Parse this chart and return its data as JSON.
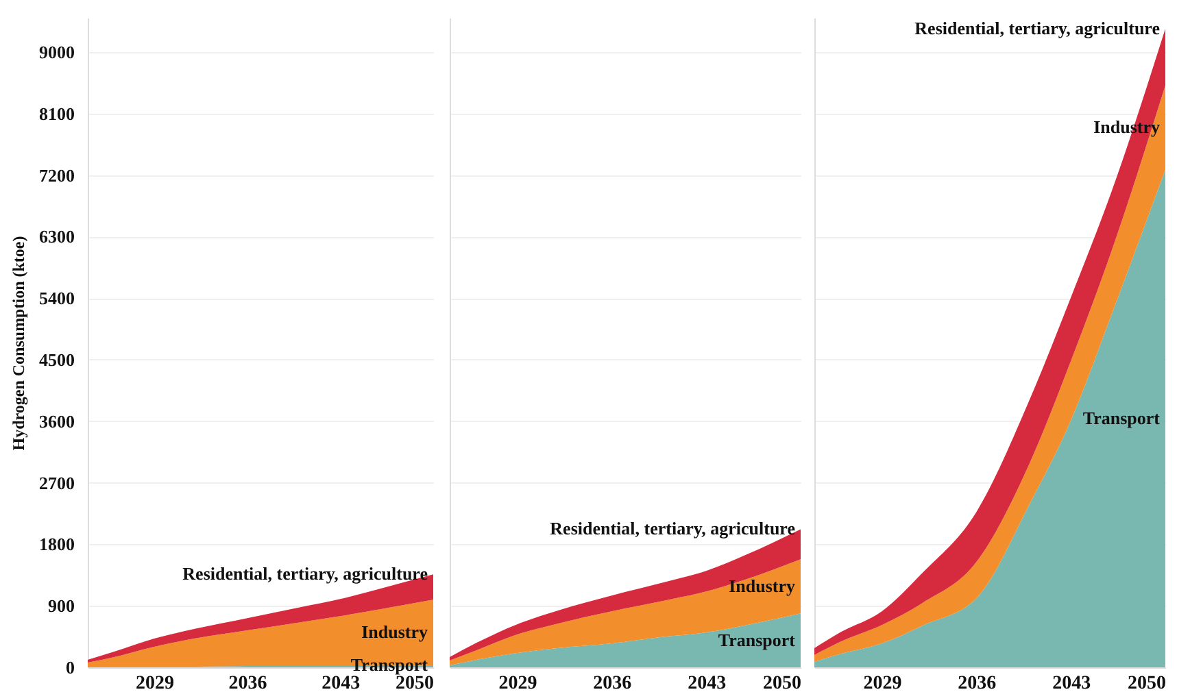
{
  "chart_data": [
    {
      "type": "area",
      "stacked": true,
      "ylabel": "Hydrogen Consumption (ktoe)",
      "x": [
        2024,
        2026,
        2029,
        2032,
        2036,
        2040,
        2043,
        2046,
        2050
      ],
      "xlim": [
        2024,
        2050
      ],
      "xticks": [
        2029,
        2036,
        2043,
        2050
      ],
      "ylim": [
        0,
        9500
      ],
      "yticks": [
        0,
        900,
        1800,
        2700,
        3600,
        4500,
        5400,
        6300,
        7200,
        8100,
        9000
      ],
      "grid": "y",
      "series": [
        {
          "name": "Transport",
          "color": "#79b8b1",
          "values": [
            10,
            10,
            10,
            10,
            20,
            20,
            20,
            20,
            30
          ]
        },
        {
          "name": "Industry",
          "color": "#f28e2b",
          "values": [
            60,
            140,
            290,
            410,
            520,
            640,
            730,
            830,
            960
          ]
        },
        {
          "name": "Residential, tertiary, agriculture",
          "color": "#d62a3e",
          "values": [
            40,
            80,
            120,
            140,
            180,
            220,
            250,
            300,
            370
          ]
        }
      ]
    },
    {
      "type": "area",
      "stacked": true,
      "tick_labels": "x",
      "x": [
        2024,
        2026,
        2029,
        2032,
        2036,
        2040,
        2043,
        2046,
        2050
      ],
      "xlim": [
        2024,
        2050
      ],
      "xticks": [
        2029,
        2036,
        2043,
        2050
      ],
      "ylim": [
        0,
        9500
      ],
      "yticks": [
        0,
        900,
        1800,
        2700,
        3600,
        4500,
        5400,
        6300,
        7200,
        8100,
        9000
      ],
      "grid": "y",
      "series": [
        {
          "name": "Transport",
          "color": "#79b8b1",
          "values": [
            30,
            110,
            210,
            280,
            350,
            450,
            510,
            620,
            790
          ]
        },
        {
          "name": "Industry",
          "color": "#f28e2b",
          "values": [
            70,
            140,
            270,
            360,
            470,
            530,
            600,
            670,
            790
          ]
        },
        {
          "name": "Residential, tertiary, agriculture",
          "color": "#d62a3e",
          "values": [
            50,
            110,
            150,
            190,
            230,
            270,
            300,
            360,
            440
          ]
        }
      ]
    },
    {
      "type": "area",
      "stacked": true,
      "tick_labels": "x",
      "x": [
        2024,
        2026,
        2029,
        2032,
        2036,
        2040,
        2043,
        2046,
        2050
      ],
      "xlim": [
        2024,
        2050
      ],
      "xticks": [
        2029,
        2036,
        2043,
        2050
      ],
      "ylim": [
        0,
        9500
      ],
      "yticks": [
        0,
        900,
        1800,
        2700,
        3600,
        4500,
        5400,
        6300,
        7200,
        8100,
        9000
      ],
      "grid": "y",
      "series": [
        {
          "name": "Transport",
          "color": "#79b8b1",
          "values": [
            80,
            200,
            350,
            610,
            1010,
            2410,
            3610,
            5150,
            7280
          ]
        },
        {
          "name": "Industry",
          "color": "#f28e2b",
          "values": [
            100,
            180,
            270,
            330,
            530,
            600,
            870,
            930,
            1230
          ]
        },
        {
          "name": "Residential, tertiary, agriculture",
          "color": "#d62a3e",
          "values": [
            100,
            140,
            200,
            440,
            730,
            930,
            930,
            870,
            830
          ]
        }
      ]
    }
  ]
}
